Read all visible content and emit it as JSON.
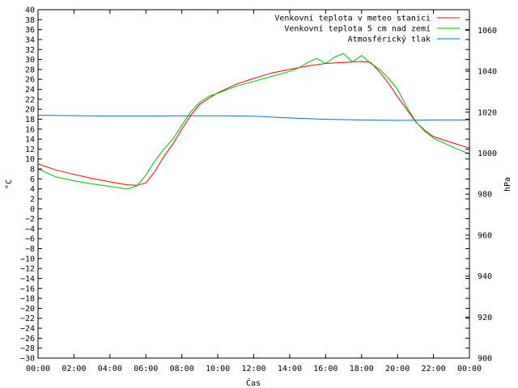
{
  "chart_data": {
    "type": "line",
    "xlabel": "Čas",
    "ylabel_left": "°C",
    "ylabel_right": "hPa",
    "x_range_hours": [
      0,
      24
    ],
    "x_ticks": [
      "00:00",
      "02:00",
      "04:00",
      "06:00",
      "08:00",
      "10:00",
      "12:00",
      "14:00",
      "16:00",
      "18:00",
      "20:00",
      "22:00",
      "00:00"
    ],
    "y_left_range": [
      -30,
      40
    ],
    "y_left_step": 2,
    "y_right_range": [
      900,
      1070
    ],
    "y_right_ticks": [
      900,
      920,
      940,
      960,
      980,
      1000,
      1020,
      1040,
      1060
    ],
    "legend_position": "top-right",
    "grid": false,
    "series": [
      {
        "name": "Venkovní teplota v meteo stanici",
        "color": "#ff0000",
        "axis": "left",
        "x": [
          0,
          1,
          2,
          3,
          4,
          5,
          5.5,
          6,
          6.5,
          7,
          7.5,
          8,
          8.5,
          9,
          9.5,
          10,
          11,
          12,
          13,
          14,
          15,
          16,
          17,
          18,
          18.5,
          19,
          19.5,
          20,
          20.5,
          21,
          21.5,
          22,
          23,
          24
        ],
        "values": [
          9,
          7.8,
          6.9,
          6.1,
          5.4,
          4.8,
          4.7,
          5.2,
          7.5,
          10.5,
          13,
          16,
          18.8,
          21,
          22.2,
          23.3,
          25,
          26.2,
          27.3,
          28,
          28.7,
          29.2,
          29.4,
          29.6,
          29.4,
          27.5,
          25.2,
          22.5,
          20,
          17.5,
          15.8,
          14.5,
          13.3,
          12.2
        ]
      },
      {
        "name": "Venkovní teplota 5 cm nad zemí",
        "color": "#00c000",
        "axis": "left",
        "x": [
          0,
          1,
          2,
          3,
          4,
          5,
          5.5,
          6,
          6.5,
          7,
          7.5,
          8,
          8.5,
          9,
          9.5,
          10,
          11,
          12,
          13,
          14,
          14.5,
          15,
          15.5,
          16,
          16.5,
          17,
          17.5,
          18,
          18.5,
          19,
          19.5,
          20,
          20.5,
          21,
          21.5,
          22,
          23,
          24
        ],
        "values": [
          8,
          6.4,
          5.6,
          5,
          4.5,
          4,
          4.6,
          6.8,
          9.6,
          12,
          14,
          16.8,
          19.5,
          21.4,
          22.6,
          23.2,
          24.6,
          25.6,
          26.6,
          27.6,
          28.3,
          29.4,
          30.2,
          29.2,
          30.5,
          31.2,
          29.5,
          30.8,
          29.2,
          28,
          26.2,
          24,
          20.5,
          17.6,
          15.6,
          14.2,
          12.5,
          11
        ]
      },
      {
        "name": "Atmosférický tlak",
        "color": "#0072c6",
        "axis": "right",
        "x": [
          0,
          2,
          4,
          6,
          8,
          10,
          12,
          14,
          16,
          18,
          20,
          22,
          24
        ],
        "values": [
          1018.5,
          1018.3,
          1018.1,
          1018.1,
          1018.2,
          1018.2,
          1018,
          1017.2,
          1016.5,
          1016.2,
          1016,
          1016.2,
          1016.2
        ]
      }
    ]
  }
}
